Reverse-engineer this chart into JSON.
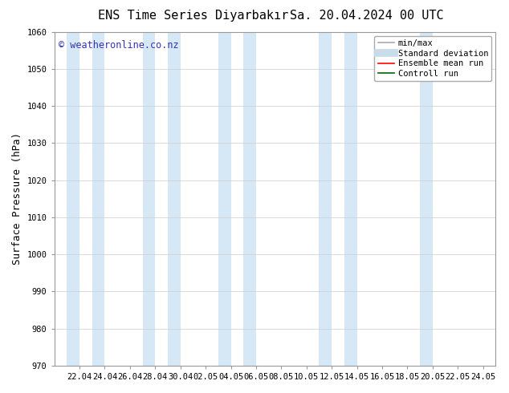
{
  "title": "ENS Time Series Diyarbakır",
  "title_right": "Sa. 20.04.2024 00 UTC",
  "ylabel": "Surface Pressure (hPa)",
  "watermark": "© weatheronline.co.nz",
  "ylim": [
    970,
    1060
  ],
  "yticks": [
    970,
    980,
    990,
    1000,
    1010,
    1020,
    1030,
    1040,
    1050,
    1060
  ],
  "x_tick_labels": [
    "22.04",
    "24.04",
    "26.04",
    "28.04",
    "30.04",
    "02.05",
    "04.05",
    "06.05",
    "08.05",
    "10.05",
    "12.05",
    "14.05",
    "16.05",
    "18.05",
    "20.05",
    "22.05",
    "24.05"
  ],
  "shade_color": "#d6e8f5",
  "bg_color": "#ffffff",
  "legend_items": [
    {
      "label": "min/max",
      "color": "#aaaaaa",
      "lw": 1.2
    },
    {
      "label": "Standard deviation",
      "color": "#c8dcea",
      "lw": 7
    },
    {
      "label": "Ensemble mean run",
      "color": "#ff0000",
      "lw": 1.2
    },
    {
      "label": "Controll run",
      "color": "#006400",
      "lw": 1.2
    }
  ],
  "title_fontsize": 11,
  "tick_fontsize": 7.5,
  "label_fontsize": 9,
  "watermark_color": "#3333bb",
  "watermark_fontsize": 8.5,
  "legend_fontsize": 7.5
}
